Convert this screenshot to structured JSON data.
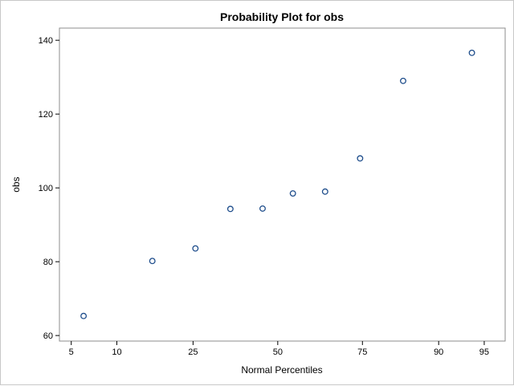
{
  "chart_data": {
    "type": "scatter",
    "title": "Probability Plot for obs",
    "xlabel": "Normal Percentiles",
    "ylabel": "obs",
    "x_scale": "normal-probability",
    "xlim": [
      4.1,
      96.5
    ],
    "ylim": [
      58.5,
      143.3
    ],
    "x_ticks": [
      5,
      10,
      25,
      50,
      75,
      90,
      95
    ],
    "y_ticks": [
      60,
      80,
      100,
      120,
      140
    ],
    "grid": false,
    "legend": "none",
    "series": [
      {
        "marker": "open-circle",
        "color": "#1f4e8c",
        "points": [
          {
            "x": 6.1,
            "y": 65.3
          },
          {
            "x": 15.9,
            "y": 80.2
          },
          {
            "x": 25.6,
            "y": 83.6
          },
          {
            "x": 35.3,
            "y": 94.3
          },
          {
            "x": 45.2,
            "y": 94.4
          },
          {
            "x": 54.8,
            "y": 98.5
          },
          {
            "x": 64.7,
            "y": 99.0
          },
          {
            "x": 74.4,
            "y": 108.0
          },
          {
            "x": 84.1,
            "y": 129.0
          },
          {
            "x": 93.9,
            "y": 136.6
          }
        ]
      }
    ]
  }
}
